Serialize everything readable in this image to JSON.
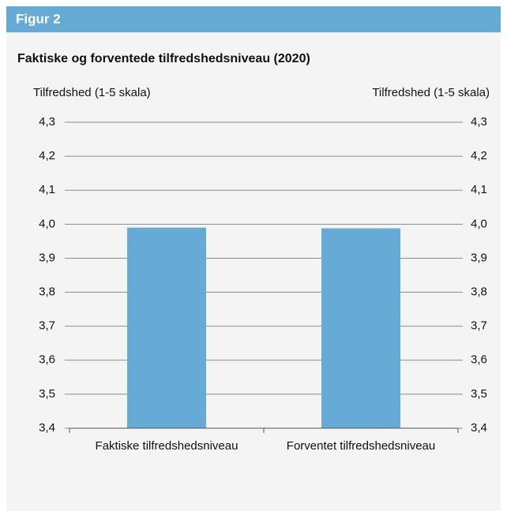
{
  "header": "Figur 2",
  "chart_data": {
    "type": "bar",
    "title": "Faktiske og forventede tilfredshedsniveau (2020)",
    "y_label": "Tilfredshed (1-5 skala)",
    "y2_label": "Tilfredshed (1-5 skala)",
    "categories": [
      "Faktiske tilfredshedsniveau",
      "Forventet tilfredshedsniveau"
    ],
    "values": [
      3.99,
      3.988
    ],
    "color": "#66aad6",
    "ylim": [
      3.4,
      4.3
    ],
    "yticks": [
      {
        "value": 3.4,
        "label": "3,4"
      },
      {
        "value": 3.5,
        "label": "3,5"
      },
      {
        "value": 3.6,
        "label": "3,6"
      },
      {
        "value": 3.7,
        "label": "3,7"
      },
      {
        "value": 3.8,
        "label": "3,8"
      },
      {
        "value": 3.9,
        "label": "3,9"
      },
      {
        "value": 4.0,
        "label": "4,0"
      },
      {
        "value": 4.1,
        "label": "4,1"
      },
      {
        "value": 4.2,
        "label": "4,2"
      },
      {
        "value": 4.3,
        "label": "4,3"
      }
    ],
    "y2lim": [
      3.4,
      4.3
    ],
    "y2ticks": [
      {
        "value": 3.4,
        "label": "3,4"
      },
      {
        "value": 3.5,
        "label": "3,5"
      },
      {
        "value": 3.6,
        "label": "3,6"
      },
      {
        "value": 3.7,
        "label": "3,7"
      },
      {
        "value": 3.8,
        "label": "3,8"
      },
      {
        "value": 3.9,
        "label": "3,9"
      },
      {
        "value": 4.0,
        "label": "4,0"
      },
      {
        "value": 4.1,
        "label": "4,1"
      },
      {
        "value": 4.2,
        "label": "4,2"
      },
      {
        "value": 4.3,
        "label": "4,3"
      }
    ],
    "grid": true
  }
}
